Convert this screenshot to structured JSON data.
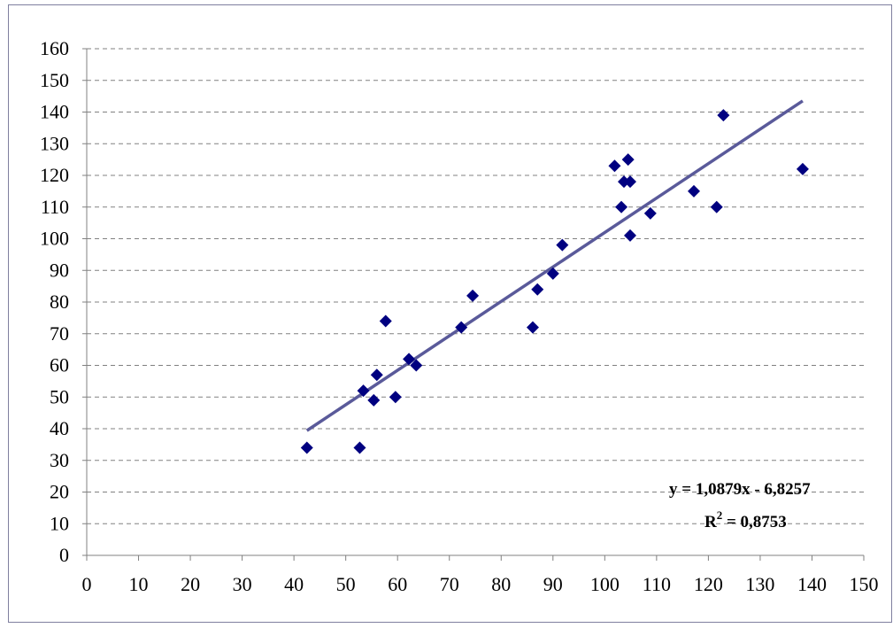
{
  "chart_data": {
    "type": "scatter",
    "title": "",
    "xlabel": "",
    "ylabel": "",
    "xlim": [
      0,
      150
    ],
    "ylim": [
      0,
      160
    ],
    "x_ticks": [
      0,
      10,
      20,
      30,
      40,
      50,
      60,
      70,
      80,
      90,
      100,
      110,
      120,
      130,
      140,
      150
    ],
    "y_ticks": [
      0,
      10,
      20,
      30,
      40,
      50,
      60,
      70,
      80,
      90,
      100,
      110,
      120,
      130,
      140,
      150,
      160
    ],
    "grid": "horizontal dashed",
    "legend": "none",
    "marker": "diamond",
    "colors": {
      "points": "#000080",
      "trendline": "#5a5a9a",
      "grid": "#808080",
      "axis": "#808080",
      "frame": "#7f7f9f"
    },
    "series": [
      {
        "x": [
          42.5,
          52.7,
          53.4,
          55.4,
          56.0,
          57.7,
          59.6,
          62.2,
          63.6,
          72.3,
          74.5,
          86.1,
          87.0,
          90.0,
          91.8,
          101.9,
          103.2,
          103.7,
          104.5,
          104.9,
          104.9,
          108.8,
          117.2,
          121.6,
          122.9,
          138.2
        ],
        "y": [
          34,
          34,
          52,
          49,
          57,
          74,
          50,
          62,
          60,
          72,
          82,
          72,
          84,
          89,
          98,
          123,
          110,
          118,
          125,
          118,
          101,
          108,
          115,
          110,
          139,
          122
        ]
      }
    ],
    "trendline": {
      "slope": 1.0879,
      "intercept": -6.8257,
      "x_range": [
        42.5,
        138.2
      ],
      "equation_label": "y = 1,0879x - 6,8257",
      "r2_prefix": "R",
      "r2_sup": "2",
      "r2_suffix": " = 0,8753"
    }
  }
}
